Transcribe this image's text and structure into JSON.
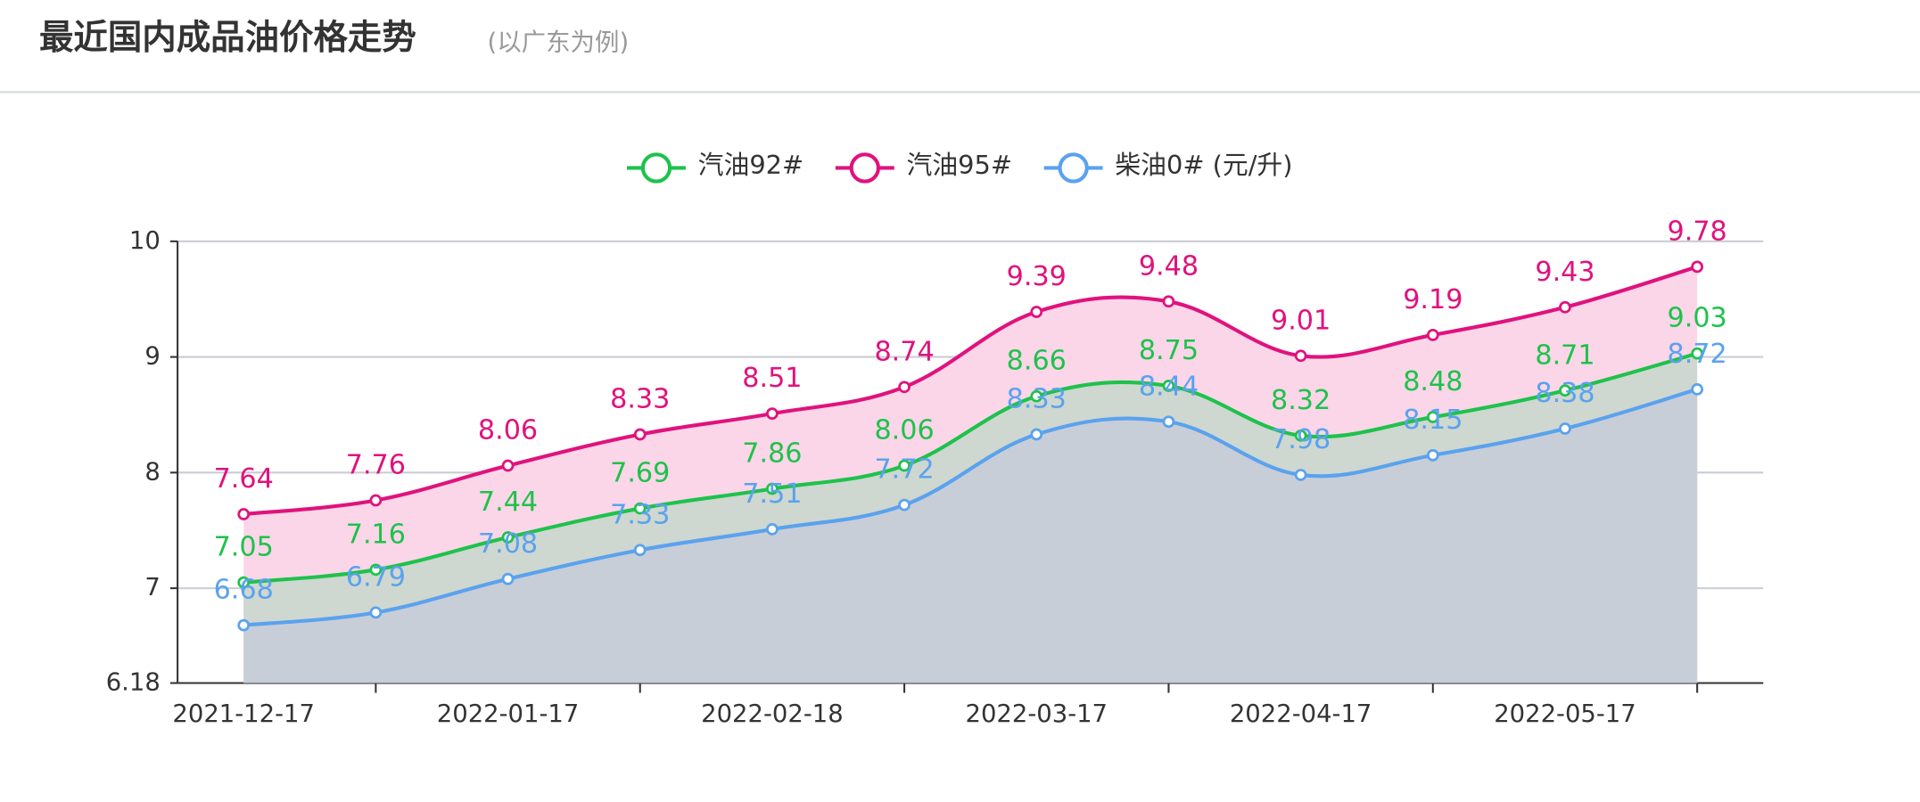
{
  "header": {
    "title": "最近国内成品油价格走势",
    "subtitle": "(以广东为例)"
  },
  "chart_data": {
    "type": "line",
    "categories": [
      "2021-12-17",
      null,
      "2022-01-17",
      null,
      "2022-02-18",
      null,
      "2022-03-17",
      null,
      "2022-04-17",
      null,
      "2022-05-17",
      null
    ],
    "series": [
      {
        "name": "汽油92#",
        "color": "#1ec24b",
        "values": [
          7.05,
          7.16,
          7.44,
          7.69,
          7.86,
          8.06,
          8.66,
          8.75,
          8.32,
          8.48,
          8.71,
          9.03
        ]
      },
      {
        "name": "汽油95#",
        "color": "#e0127d",
        "values": [
          7.64,
          7.76,
          8.06,
          8.33,
          8.51,
          8.74,
          9.39,
          9.48,
          9.01,
          9.19,
          9.43,
          9.78
        ]
      },
      {
        "name": "柴油0# (元/升)",
        "color": "#5aa2ee",
        "values": [
          6.68,
          6.79,
          7.08,
          7.33,
          7.51,
          7.72,
          8.33,
          8.44,
          7.98,
          8.15,
          8.38,
          8.72
        ]
      }
    ],
    "ylim": [
      6.18,
      10
    ],
    "yticks": [
      6.18,
      7,
      8,
      9,
      10
    ],
    "grid": true,
    "smooth": true,
    "area": true
  }
}
